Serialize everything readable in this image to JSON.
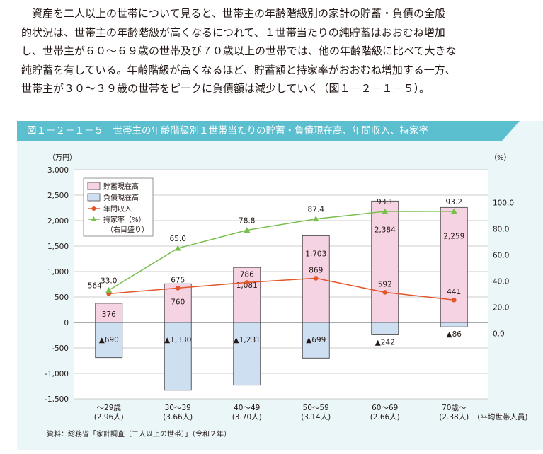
{
  "paragraph": {
    "lines": [
      "　資産を二人以上の世帯について見ると、世帯主の年齢階級別の家計の貯蓄・負債の全般",
      "的状況は、世帯主の年齢階級が高くなるにつれて、１世帯当たりの純貯蓄はおおむね増加",
      "し、世帯主が６０～６９歳の世帯及び７０歳以上の世帯では、他の年齢階級に比べて大きな",
      "純貯蓄を有している。年齢階級が高くなるほど、貯蓄額と持家率がおおむね増加する一方、",
      "世帯主が３０～３９歳の世帯をピークに負債額は減少していく（図１－２－１－５）。"
    ]
  },
  "figure": {
    "title": "図１－２－１－５　世帯主の年齢階級別１世帯当たりの貯蓄・負債現在高、年間収入、持家率",
    "source": "資料：総務省「家計調査（二人以上の世帯）」（令和２年）"
  },
  "colors": {
    "savings_fill": "#f5d3e3",
    "savings_stroke": "#4a4a4a",
    "debt_fill": "#cfdff2",
    "income": "#e2562b",
    "ownership": "#79bf4e",
    "header": "#5cbfd0",
    "panel": "#eaf6f8"
  },
  "chart_data": {
    "type": "bar",
    "left_unit": "（万円）",
    "right_unit": "（%）",
    "left_ticks": [
      "3,000",
      "2,500",
      "2,000",
      "1,500",
      "1,000",
      "500",
      "0",
      "-500",
      "-1,000",
      "-1,500"
    ],
    "right_ticks": [
      "100.0",
      "80.0",
      "60.0",
      "40.0",
      "20.0",
      "0.0"
    ],
    "ylim_left": [
      -1500,
      3000
    ],
    "ylim_right": [
      -50,
      125
    ],
    "categories": [
      {
        "age": "～29歳",
        "persons": "(2.96人)"
      },
      {
        "age": "30～39",
        "persons": "(3.66人)"
      },
      {
        "age": "40～49",
        "persons": "(3.70人)"
      },
      {
        "age": "50～59",
        "persons": "(3.14人)"
      },
      {
        "age": "60～69",
        "persons": "(2.66人)"
      },
      {
        "age": "70歳～",
        "persons": "(2.38人)"
      }
    ],
    "persons_note": "(平均世帯人員)",
    "series": [
      {
        "name": "貯蓄現在高",
        "values": [
          376,
          760,
          1081,
          1703,
          2384,
          2259
        ],
        "labels": [
          "376",
          "760",
          "1,081",
          "1,703",
          "2,384",
          "2,259"
        ]
      },
      {
        "name": "負債現在高",
        "values": [
          690,
          1330,
          1231,
          699,
          242,
          86
        ],
        "labels": [
          "▲690",
          "▲1,330",
          "▲1,231",
          "▲699",
          "▲242",
          "▲86"
        ]
      },
      {
        "name": "年間収入",
        "values": [
          564,
          675,
          786,
          869,
          592,
          441
        ],
        "labels": [
          "564",
          "675",
          "786",
          "869",
          "592",
          "441"
        ]
      },
      {
        "name": "持家率（%）",
        "name_line2": "（右目盛り）",
        "values": [
          33.0,
          65.0,
          78.8,
          87.4,
          93.1,
          93.2
        ],
        "labels": [
          "33.0",
          "65.0",
          "78.8",
          "87.4",
          "93.1",
          "93.2"
        ]
      }
    ]
  }
}
